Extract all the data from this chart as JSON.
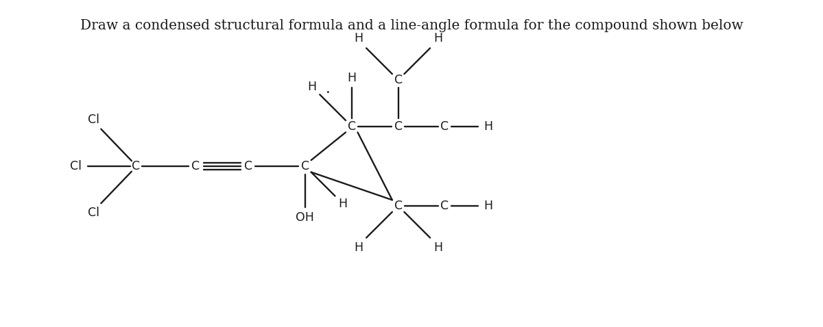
{
  "title": "Draw a condensed structural formula and a line-angle formula for the compound shown below",
  "title_fontsize": 14.5,
  "bg_color": "#ffffff",
  "line_color": "#1a1a1a",
  "text_color": "#1a1a1a",
  "font_size": 12.5
}
